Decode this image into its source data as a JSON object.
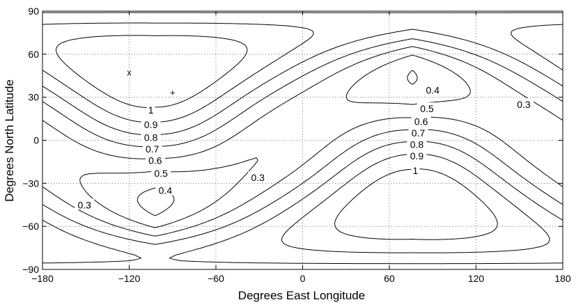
{
  "chart_data": {
    "type": "contour",
    "title": "",
    "xlabel": "Degrees East Longitude",
    "ylabel": "Degrees North Latitude",
    "xlim": [
      -180,
      180
    ],
    "ylim": [
      -90,
      90
    ],
    "xticks": [
      -180,
      -120,
      -60,
      0,
      60,
      120,
      180
    ],
    "yticks": [
      -90,
      -60,
      -30,
      0,
      30,
      60,
      90
    ],
    "xtick_labels": [
      "−180",
      "−120",
      "−60",
      "0",
      "60",
      "120",
      "180"
    ],
    "ytick_labels": [
      "−90",
      "−60",
      "−30",
      "0",
      "30",
      "60",
      "90"
    ],
    "grid": true,
    "contour_levels": [
      0.3,
      0.4,
      0.5,
      0.6,
      0.7,
      0.8,
      0.9,
      1
    ],
    "maxima": [
      {
        "lon": -104,
        "lat": 45
      },
      {
        "lon": 78,
        "lat": -42
      }
    ],
    "contour_labels": [
      {
        "text": "1",
        "lon": -105,
        "lat": 21
      },
      {
        "text": "0.9",
        "lon": -105,
        "lat": 11
      },
      {
        "text": "0.8",
        "lon": -105,
        "lat": 2
      },
      {
        "text": "0.7",
        "lon": -104,
        "lat": -6
      },
      {
        "text": "0.6",
        "lon": -102,
        "lat": -14
      },
      {
        "text": "0.5",
        "lon": -98,
        "lat": -23
      },
      {
        "text": "0.4",
        "lon": -95,
        "lat": -35
      },
      {
        "text": "0.3",
        "lon": -151,
        "lat": -45
      },
      {
        "text": "0.3",
        "lon": -31,
        "lat": -26
      },
      {
        "text": "0.4",
        "lon": 90,
        "lat": 35
      },
      {
        "text": "0.5",
        "lon": 86,
        "lat": 22
      },
      {
        "text": "0.6",
        "lon": 82,
        "lat": 13
      },
      {
        "text": "0.7",
        "lon": 80,
        "lat": 5
      },
      {
        "text": "0.8",
        "lon": 79,
        "lat": -3
      },
      {
        "text": "0.9",
        "lon": 79,
        "lat": -11
      },
      {
        "text": "1",
        "lon": 78,
        "lat": -21
      },
      {
        "text": "0.3",
        "lon": 153,
        "lat": 25
      }
    ],
    "markers": [
      {
        "symbol": "x",
        "lon": -120,
        "lat": 47
      },
      {
        "symbol": "+",
        "lon": -90,
        "lat": 33
      }
    ]
  }
}
